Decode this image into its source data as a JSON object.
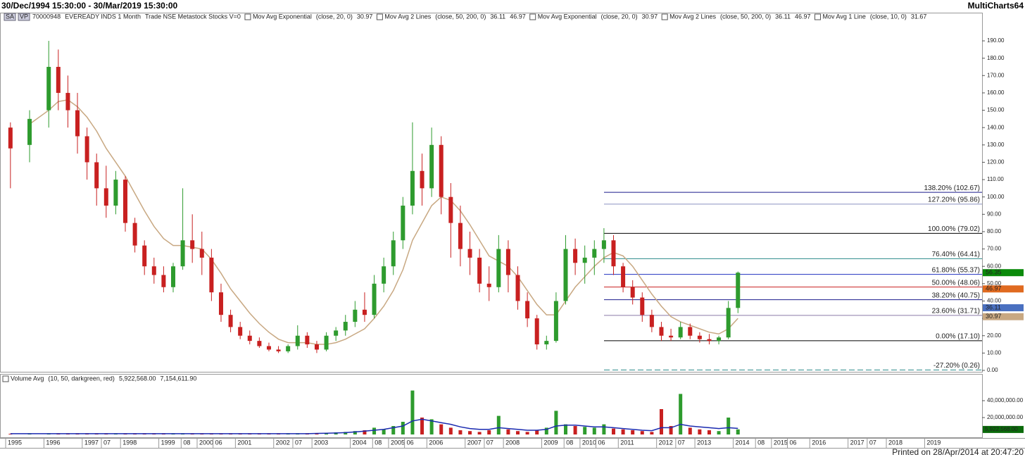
{
  "header": {
    "range": "30/Dec/1994 15:30:00 - 30/Mar/2019 15:30:00",
    "tags": [
      "SA",
      "VP"
    ],
    "symbol": "70000948",
    "instrument": "EVEREADY INDS 1 Month",
    "source": "Trade NSE Metastock Stocks V=0",
    "brand": "MultiCharts64",
    "indicators": [
      {
        "name": "Mov Avg Exponential",
        "params": "(close, 20, 0)",
        "values": [
          30.97
        ],
        "colors": [
          "#2e9b2e"
        ]
      },
      {
        "name": "Mov Avg 2 Lines",
        "params": "(close, 50, 200, 0)",
        "values": [
          36.11,
          46.97
        ],
        "colors": [
          "#2030c0",
          "#e06a20"
        ]
      },
      {
        "name": "Mov Avg Exponential",
        "params": "(close, 20, 0)",
        "values": [
          30.97
        ],
        "colors": [
          "#c8a882"
        ]
      },
      {
        "name": "Mov Avg 2 Lines",
        "params": "(close, 50, 200, 0)",
        "values": [
          36.11,
          46.97
        ],
        "colors": [
          "#7f8fd0",
          "#e06a20"
        ]
      },
      {
        "name": "Mov Avg 1 Line",
        "params": "(close, 10, 0)",
        "values": [
          31.67
        ],
        "colors": [
          "#c02020"
        ]
      }
    ]
  },
  "volume_header": {
    "name": "Volume Avg",
    "params": "(10, 50, darkgreen, red)",
    "values": [
      "5,922,568.00",
      "7,154,611.90"
    ]
  },
  "footer": "Printed on 28/Apr/2014 at 20:47:20",
  "chart_data": [
    {
      "type": "candlestick",
      "up_color": "#2e9b2e",
      "down_color": "#c82020",
      "x": [
        "1995-01",
        "1995-07",
        "1996-01",
        "1996-04",
        "1996-07",
        "1996-10",
        "1997-01",
        "1997-04",
        "1997-07",
        "1997-10",
        "1998-01",
        "1998-04",
        "1998-07",
        "1998-10",
        "1999-01",
        "1999-04",
        "1999-07",
        "1999-10",
        "2000-01",
        "2000-04",
        "2000-07",
        "2000-10",
        "2001-01",
        "2001-04",
        "2001-07",
        "2001-10",
        "2002-01",
        "2002-04",
        "2002-07",
        "2002-10",
        "2003-01",
        "2003-04",
        "2003-07",
        "2003-10",
        "2004-01",
        "2004-04",
        "2004-07",
        "2004-10",
        "2005-01",
        "2005-04",
        "2005-07",
        "2005-10",
        "2006-01",
        "2006-04",
        "2006-07",
        "2006-10",
        "2007-01",
        "2007-04",
        "2007-07",
        "2007-10",
        "2008-01",
        "2008-04",
        "2008-07",
        "2008-10",
        "2009-01",
        "2009-04",
        "2009-07",
        "2009-10",
        "2010-01",
        "2010-04",
        "2010-07",
        "2010-10",
        "2011-01",
        "2011-04",
        "2011-07",
        "2011-10",
        "2012-01",
        "2012-04",
        "2012-07",
        "2012-10",
        "2013-01",
        "2013-04",
        "2013-07",
        "2013-10",
        "2014-01"
      ],
      "open": [
        140,
        130,
        150,
        175,
        160,
        150,
        135,
        120,
        105,
        95,
        110,
        85,
        72,
        60,
        55,
        48,
        60,
        75,
        70,
        65,
        45,
        32,
        25,
        20,
        17,
        14,
        12,
        11,
        14,
        20,
        15,
        12,
        20,
        23,
        28,
        35,
        32,
        50,
        60,
        75,
        95,
        115,
        105,
        130,
        100,
        85,
        70,
        65,
        50,
        48,
        70,
        55,
        40,
        30,
        15,
        17,
        40,
        70,
        62,
        65,
        70,
        75,
        60,
        48,
        42,
        32,
        25,
        20,
        19,
        25,
        20,
        18,
        17,
        19,
        36
      ],
      "high": [
        143,
        150,
        190,
        185,
        170,
        160,
        140,
        125,
        118,
        115,
        112,
        88,
        75,
        65,
        60,
        62,
        105,
        90,
        80,
        70,
        50,
        35,
        28,
        23,
        19,
        16,
        14,
        15,
        26,
        22,
        17,
        22,
        25,
        32,
        40,
        45,
        55,
        65,
        80,
        100,
        143,
        125,
        140,
        135,
        108,
        95,
        80,
        70,
        60,
        78,
        75,
        60,
        45,
        32,
        20,
        45,
        78,
        76,
        72,
        75,
        82,
        78,
        62,
        52,
        45,
        35,
        28,
        24,
        28,
        27,
        22,
        21,
        20,
        40,
        57
      ],
      "low": [
        105,
        120,
        140,
        150,
        140,
        125,
        110,
        95,
        88,
        90,
        80,
        68,
        55,
        50,
        45,
        45,
        58,
        62,
        55,
        40,
        28,
        22,
        18,
        15,
        13,
        11,
        10,
        10,
        12,
        13,
        10,
        11,
        17,
        20,
        25,
        28,
        30,
        45,
        55,
        70,
        90,
        95,
        100,
        90,
        65,
        60,
        55,
        45,
        40,
        45,
        45,
        35,
        25,
        12,
        12,
        16,
        38,
        55,
        50,
        55,
        62,
        55,
        45,
        38,
        28,
        22,
        17,
        17,
        18,
        18,
        16,
        15,
        15,
        18,
        33
      ],
      "close": [
        128,
        145,
        175,
        160,
        150,
        135,
        120,
        105,
        95,
        110,
        85,
        72,
        60,
        55,
        48,
        60,
        75,
        70,
        65,
        45,
        32,
        25,
        20,
        17,
        14,
        12,
        11,
        14,
        20,
        15,
        12,
        20,
        23,
        28,
        35,
        32,
        50,
        60,
        75,
        95,
        115,
        105,
        130,
        100,
        85,
        70,
        65,
        50,
        48,
        70,
        55,
        40,
        30,
        15,
        17,
        40,
        70,
        62,
        65,
        70,
        75,
        60,
        48,
        42,
        32,
        25,
        20,
        19,
        25,
        20,
        18,
        17,
        19,
        36,
        56.35
      ],
      "lines": [
        {
          "color": "#c8a882",
          "values": [
            null,
            142,
            150,
            155,
            156,
            152,
            146,
            138,
            128,
            120,
            112,
            102,
            92,
            83,
            76,
            72,
            72,
            71,
            70,
            64,
            56,
            47,
            40,
            33,
            27,
            22,
            18,
            16,
            16,
            16,
            15,
            15,
            16,
            18,
            21,
            24,
            30,
            37,
            46,
            58,
            75,
            85,
            95,
            100,
            98,
            92,
            84,
            75,
            66,
            63,
            60,
            54,
            46,
            38,
            32,
            32,
            40,
            48,
            54,
            60,
            65,
            68,
            66,
            60,
            52,
            44,
            37,
            31,
            28,
            26,
            24,
            22,
            21,
            24,
            30
          ]
        }
      ],
      "xlim": [
        "1994-12",
        "2020-07"
      ],
      "ylim": [
        0,
        200
      ],
      "yticks": [
        {
          "value": 0,
          "label": "0.00"
        },
        {
          "value": 10,
          "label": "10.00"
        },
        {
          "value": 20,
          "label": "20.00"
        },
        {
          "value": 30,
          "label": "30.00"
        },
        {
          "value": 40,
          "label": "40.00"
        },
        {
          "value": 50,
          "label": "50.00"
        },
        {
          "value": 60,
          "label": "60.00"
        },
        {
          "value": 70,
          "label": "70.00"
        },
        {
          "value": 80,
          "label": "80.00"
        },
        {
          "value": 90,
          "label": "90.00"
        },
        {
          "value": 100,
          "label": "100.00"
        },
        {
          "value": 110,
          "label": "110.00"
        },
        {
          "value": 120,
          "label": "120.00"
        },
        {
          "value": 130,
          "label": "130.00"
        },
        {
          "value": 140,
          "label": "140.00"
        },
        {
          "value": 150,
          "label": "150.00"
        },
        {
          "value": 160,
          "label": "160.00"
        },
        {
          "value": 170,
          "label": "170.00"
        },
        {
          "value": 180,
          "label": "180.00"
        },
        {
          "value": 190,
          "label": "190.00"
        }
      ],
      "fib_levels": [
        {
          "value": 102.67,
          "label": "138.20% (102.67)",
          "color": "#1a1a8c"
        },
        {
          "value": 95.86,
          "label": "127.20% (95.86)",
          "color": "#8a90c0"
        },
        {
          "value": 79.02,
          "label": "100.00% (79.02)",
          "color": "#000000"
        },
        {
          "value": 64.41,
          "label": "76.40% (64.41)",
          "color": "#2a8a8a"
        },
        {
          "value": 55.37,
          "label": "61.80% (55.37)",
          "color": "#2030c0"
        },
        {
          "value": 48.06,
          "label": "50.00% (48.06)",
          "color": "#c82020"
        },
        {
          "value": 40.75,
          "label": "38.20% (40.75)",
          "color": "#1a1a8c"
        },
        {
          "value": 31.71,
          "label": "23.60% (31.71)",
          "color": "#8a7aa8"
        },
        {
          "value": 17.1,
          "label": "0.00% (17.10)",
          "color": "#000000"
        },
        {
          "value": 0.26,
          "label": "-27.20% (0.26)",
          "color": "#2a8a8a",
          "dashed": true
        }
      ],
      "price_markers": [
        {
          "value": 56.35,
          "color": "#0a8a0a"
        },
        {
          "value": 46.97,
          "color": "#e06a20"
        },
        {
          "value": 36.11,
          "color": "#4a70c0"
        },
        {
          "value": 30.97,
          "color": "#c8a882"
        }
      ]
    },
    {
      "type": "bar",
      "values": [
        800000,
        800000,
        900000,
        800000,
        800000,
        800000,
        800000,
        800000,
        800000,
        800000,
        800000,
        800000,
        800000,
        800000,
        800000,
        800000,
        900000,
        800000,
        800000,
        800000,
        800000,
        800000,
        800000,
        800000,
        800000,
        800000,
        800000,
        800000,
        900000,
        800000,
        1500000,
        2000000,
        2500000,
        3000000,
        4000000,
        5000000,
        8000000,
        6000000,
        10000000,
        15000000,
        52000000,
        20000000,
        18000000,
        12000000,
        8000000,
        5000000,
        4000000,
        3000000,
        5000000,
        22000000,
        6000000,
        4000000,
        3000000,
        5000000,
        8000000,
        28000000,
        12000000,
        10000000,
        9000000,
        8000000,
        12000000,
        7000000,
        6000000,
        5000000,
        4000000,
        3000000,
        30000000,
        10000000,
        48000000,
        8000000,
        6000000,
        5000000,
        4000000,
        20000000,
        6000000
      ],
      "avg": {
        "color": "#1a2ab0",
        "values": [
          900000,
          900000,
          900000,
          900000,
          900000,
          900000,
          900000,
          900000,
          900000,
          900000,
          900000,
          900000,
          900000,
          900000,
          900000,
          900000,
          900000,
          900000,
          900000,
          900000,
          900000,
          900000,
          900000,
          900000,
          900000,
          900000,
          900000,
          900000,
          900000,
          900000,
          1200000,
          1500000,
          1800000,
          2200000,
          3000000,
          4000000,
          5000000,
          6000000,
          8000000,
          10000000,
          16000000,
          18000000,
          16000000,
          14000000,
          12000000,
          9000000,
          7000000,
          6000000,
          6000000,
          8000000,
          7000000,
          6000000,
          5000000,
          5000000,
          6000000,
          10000000,
          11000000,
          11000000,
          10000000,
          9000000,
          9000000,
          8000000,
          7000000,
          6000000,
          5000000,
          4500000,
          8000000,
          8000000,
          12000000,
          10000000,
          9000000,
          8000000,
          7000000,
          8000000,
          7154611.9
        ]
      },
      "ylim": [
        0,
        70000000
      ],
      "yticks": [
        {
          "value": 20000000,
          "label": "20,000,000.00"
        },
        {
          "value": 40000000,
          "label": "40,000,000.00"
        }
      ],
      "marker": {
        "value": 5922568,
        "label": "5,922,568.00",
        "color": "#0a6a0a"
      },
      "xticks": [
        {
          "value": "1995-01",
          "label": "1995"
        },
        {
          "value": "1996-01",
          "label": "1996"
        },
        {
          "value": "1997-01",
          "label": "1997"
        },
        {
          "value": "1997-07",
          "label": "07"
        },
        {
          "value": "1998-01",
          "label": "1998"
        },
        {
          "value": "1999-01",
          "label": "1999"
        },
        {
          "value": "1999-08",
          "label": "08"
        },
        {
          "value": "2000-01",
          "label": "2000"
        },
        {
          "value": "2000-06",
          "label": "06"
        },
        {
          "value": "2001-01",
          "label": "2001"
        },
        {
          "value": "2002-01",
          "label": "2002"
        },
        {
          "value": "2002-07",
          "label": "07"
        },
        {
          "value": "2003-01",
          "label": "2003"
        },
        {
          "value": "2004-01",
          "label": "2004"
        },
        {
          "value": "2004-08",
          "label": "08"
        },
        {
          "value": "2005-01",
          "label": "2005"
        },
        {
          "value": "2005-06",
          "label": "06"
        },
        {
          "value": "2006-01",
          "label": "2006"
        },
        {
          "value": "2007-01",
          "label": "2007"
        },
        {
          "value": "2007-07",
          "label": "07"
        },
        {
          "value": "2008-01",
          "label": "2008"
        },
        {
          "value": "2009-01",
          "label": "2009"
        },
        {
          "value": "2009-08",
          "label": "08"
        },
        {
          "value": "2010-01",
          "label": "2010"
        },
        {
          "value": "2010-06",
          "label": "06"
        },
        {
          "value": "2011-01",
          "label": "2011"
        },
        {
          "value": "2012-01",
          "label": "2012"
        },
        {
          "value": "2012-07",
          "label": "07"
        },
        {
          "value": "2013-01",
          "label": "2013"
        },
        {
          "value": "2014-01",
          "label": "2014"
        },
        {
          "value": "2014-08",
          "label": "08"
        },
        {
          "value": "2015-01",
          "label": "2015"
        },
        {
          "value": "2015-06",
          "label": "06"
        },
        {
          "value": "2016-01",
          "label": "2016"
        },
        {
          "value": "2017-01",
          "label": "2017"
        },
        {
          "value": "2017-07",
          "label": "07"
        },
        {
          "value": "2018-01",
          "label": "2018"
        },
        {
          "value": "2019-01",
          "label": "2019"
        }
      ]
    }
  ]
}
